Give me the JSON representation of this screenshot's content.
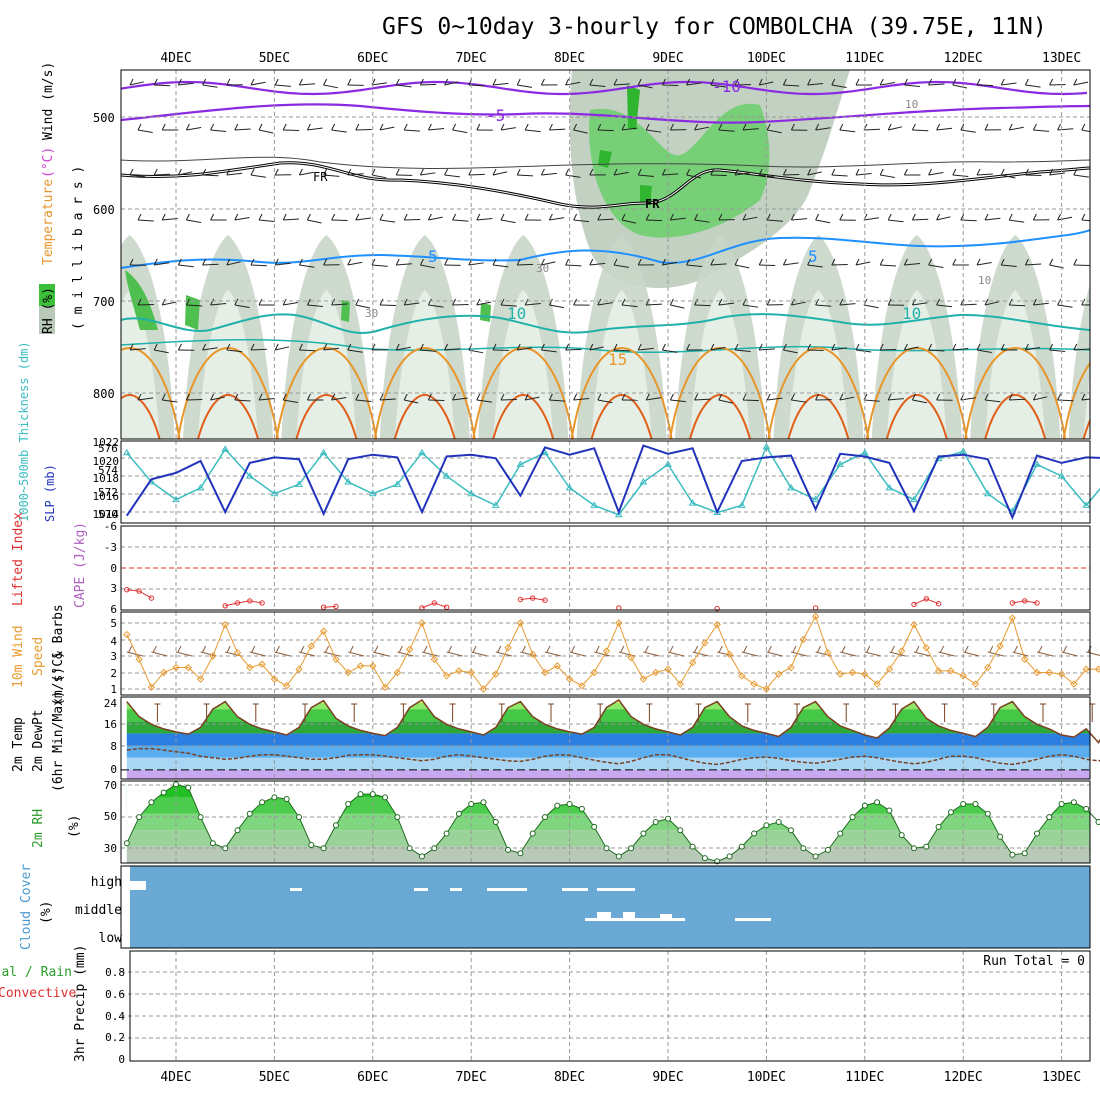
{
  "title": "GFS 0~10day 3-hourly for COMBOLCHA (39.75E, 11N)",
  "date_labels": [
    "4DEC",
    "5DEC",
    "6DEC",
    "7DEC",
    "8DEC",
    "9DEC",
    "10DEC",
    "11DEC",
    "12DEC",
    "13DEC"
  ],
  "panels": {
    "upper_air": {
      "label_rh": "RH (%)",
      "label_temperature": "Temperature",
      "label_temperature_unit": "(°C)",
      "label_wind": "Wind (m/s)",
      "label_pressure": "( m i l l i b a r s )",
      "pressure_ticks": [
        "500",
        "600",
        "700",
        "800"
      ],
      "contour_labels": {
        "m10": "-10",
        "m5": "-5",
        "fr": "FR",
        "p5": "5",
        "p10": "10",
        "p15": "15",
        "rh10": "10",
        "rh30": "30"
      }
    },
    "slp_thickness": {
      "label_thickness": "1000~500mb Thickness (dm)",
      "label_slp": "SLP (mb)",
      "left_ticks": [
        "576",
        "574",
        "572",
        "570"
      ],
      "right_ticks": [
        "1022",
        "1020",
        "1018",
        "1016",
        "1014"
      ]
    },
    "lifted_index": {
      "label_li": "Lifted Index",
      "label_cape": "CAPE (J/kg)",
      "ticks": [
        "-6",
        "-3",
        "0",
        "3",
        "6"
      ]
    },
    "wind10m": {
      "label_1": "10m Wind",
      "label_2": "Speed",
      "label_3": "(m/s) & Barbs",
      "ticks": [
        "5",
        "4",
        "3",
        "2",
        "1"
      ]
    },
    "temp2m": {
      "label_1": "2m Temp",
      "label_2": "2m DewPt",
      "label_3": "(6hr Min/Max) (°C)",
      "ticks": [
        "24",
        "16",
        "8",
        "0"
      ]
    },
    "rh2m": {
      "label": "2m RH",
      "unit": "(%)",
      "ticks": [
        "70",
        "50",
        "30"
      ]
    },
    "cloud": {
      "label": "Cloud Cover",
      "unit": "(%)",
      "levels": [
        "high",
        "middle",
        "low"
      ]
    },
    "precip": {
      "label_total": "Total / Rain",
      "label_conv": "Convective",
      "label_axis": "3hr Precip (mm)",
      "ticks": [
        "0.8",
        "0.6",
        "0.4",
        "0.2",
        "0"
      ],
      "run_total": "Run Total = 0"
    }
  },
  "colors": {
    "purple": "#8a2be2",
    "cyan_blue": "#1e90ff",
    "teal": "#20b2aa",
    "orange": "#e8952a",
    "dark_orange": "#e0601a",
    "rh_green": "#3cc03c",
    "rh_grey": "#b8c9b8",
    "slp_blue": "#2233bb",
    "thickness_cyan": "#3bbcc0",
    "cloud_blue": "#6aa9d4",
    "lifted_red": "#e03030",
    "wind_orange": "#e89a30"
  },
  "chart_data": [
    {
      "type": "line",
      "name": "SLP and 1000-500mb thickness",
      "x": [
        "3DEC12",
        "3DEC18",
        "4DEC00",
        "4DEC06",
        "4DEC12",
        "4DEC18",
        "5DEC00",
        "5DEC06",
        "5DEC12",
        "5DEC18",
        "6DEC00",
        "6DEC06",
        "6DEC12",
        "6DEC18",
        "7DEC00",
        "7DEC06",
        "7DEC12",
        "7DEC18",
        "8DEC00",
        "8DEC06",
        "8DEC12",
        "8DEC18",
        "9DEC00",
        "9DEC06",
        "9DEC12",
        "9DEC18",
        "10DEC00",
        "10DEC06",
        "10DEC12",
        "10DEC18",
        "11DEC00",
        "11DEC06",
        "11DEC12",
        "11DEC18",
        "12DEC00",
        "12DEC06",
        "12DEC12",
        "12DEC18",
        "13DEC00",
        "13DEC06",
        "13DEC12"
      ],
      "series": [
        {
          "name": "SLP (mb)",
          "values": [
            1013.8,
            1017.8,
            1018.5,
            1019.8,
            1014.2,
            1019.6,
            1020.2,
            1020.0,
            1014.0,
            1020.0,
            1020.5,
            1020.2,
            1014.2,
            1020.3,
            1020.5,
            1020.1,
            1016.0,
            1021.3,
            1020.5,
            1021.2,
            1014.2,
            1021.5,
            1020.6,
            1021.2,
            1014.2,
            1019.8,
            1020.2,
            1020.4,
            1014.5,
            1020.6,
            1020.3,
            1019.6,
            1014.3,
            1020.3,
            1020.5,
            1020.0,
            1013.6,
            1020.4,
            1019.6,
            1020.2,
            1020.1
          ]
        },
        {
          "name": "Thickness (dm)",
          "values": [
            575.5,
            573.0,
            571.5,
            572.5,
            575.8,
            573.5,
            572.0,
            572.8,
            575.5,
            573.0,
            572.0,
            572.8,
            575.5,
            573.5,
            572.0,
            571.0,
            574.5,
            575.5,
            572.5,
            571.0,
            570.2,
            573.0,
            574.5,
            571.2,
            570.4,
            571.0,
            576.0,
            572.5,
            571.5,
            574.5,
            575.5,
            572.5,
            571.5,
            575.0,
            575.6,
            572.0,
            570.5,
            574.5,
            573.5,
            571.0,
            573.5
          ]
        }
      ],
      "ylim_left": [
        569.5,
        576.5
      ],
      "ylim_right": [
        1013,
        1022
      ]
    },
    {
      "type": "line",
      "name": "Lifted Index",
      "x": [
        "3DEC12",
        "3DEC15",
        "3DEC18",
        "4DEC12",
        "4DEC15",
        "4DEC18",
        "4DEC21",
        "5DEC12",
        "5DEC15",
        "6DEC12",
        "6DEC15",
        "6DEC18",
        "7DEC12",
        "7DEC15",
        "7DEC18",
        "8DEC12",
        "9DEC12",
        "10DEC12",
        "11DEC12",
        "11DEC15",
        "11DEC18",
        "12DEC12",
        "12DEC15",
        "12DEC18"
      ],
      "values": [
        3.1,
        3.3,
        4.3,
        5.4,
        5.0,
        4.7,
        5.0,
        5.6,
        5.5,
        5.7,
        5.0,
        5.6,
        4.5,
        4.3,
        4.6,
        5.7,
        5.8,
        5.7,
        5.2,
        4.4,
        5.1,
        5.0,
        4.7,
        5.0
      ],
      "ylim": [
        -6,
        6
      ],
      "ylabel": "Lifted Index"
    },
    {
      "type": "line",
      "name": "10m wind speed",
      "x": [
        "3DEC12",
        "3DEC15",
        "3DEC18",
        "3DEC21",
        "4DEC00",
        "4DEC03",
        "4DEC06",
        "4DEC09",
        "4DEC12",
        "4DEC15",
        "4DEC18",
        "4DEC21",
        "5DEC00",
        "5DEC03",
        "5DEC06",
        "5DEC09",
        "5DEC12",
        "5DEC15",
        "5DEC18",
        "5DEC21",
        "6DEC00",
        "6DEC03",
        "6DEC06",
        "6DEC09",
        "6DEC12",
        "6DEC15",
        "6DEC18",
        "6DEC21",
        "7DEC00",
        "7DEC03",
        "7DEC06",
        "7DEC09",
        "7DEC12",
        "7DEC15",
        "7DEC18",
        "7DEC21",
        "8DEC00",
        "8DEC03",
        "8DEC06",
        "8DEC09",
        "8DEC12",
        "8DEC15",
        "8DEC18",
        "8DEC21",
        "9DEC00",
        "9DEC03",
        "9DEC06",
        "9DEC09",
        "9DEC12",
        "9DEC15",
        "9DEC18",
        "9DEC21",
        "10DEC00",
        "10DEC03",
        "10DEC06",
        "10DEC09",
        "10DEC12",
        "10DEC15",
        "10DEC18",
        "10DEC21",
        "11DEC00",
        "11DEC03",
        "11DEC06",
        "11DEC09",
        "11DEC12",
        "11DEC15",
        "11DEC18",
        "11DEC21",
        "12DEC00",
        "12DEC03",
        "12DEC06",
        "12DEC09",
        "12DEC12",
        "12DEC15",
        "12DEC18",
        "12DEC21",
        "13DEC00",
        "13DEC03",
        "13DEC06",
        "13DEC09",
        "13DEC12"
      ],
      "values": [
        4.3,
        2.8,
        1.1,
        2.0,
        2.3,
        2.3,
        1.6,
        3.0,
        4.9,
        3.2,
        2.3,
        2.5,
        1.6,
        1.2,
        2.2,
        3.6,
        4.5,
        2.8,
        2.0,
        2.4,
        2.4,
        1.1,
        2.0,
        3.4,
        5.0,
        2.8,
        1.8,
        2.1,
        2.0,
        1.0,
        1.9,
        3.5,
        5.0,
        3.1,
        2.0,
        2.4,
        1.6,
        1.2,
        2.0,
        3.3,
        5.0,
        2.9,
        1.6,
        2.0,
        2.2,
        1.3,
        2.6,
        3.8,
        4.9,
        3.1,
        1.8,
        1.3,
        1.0,
        1.9,
        2.3,
        4.0,
        5.4,
        3.2,
        1.9,
        2.0,
        1.9,
        1.3,
        2.2,
        3.3,
        4.9,
        3.5,
        2.1,
        2.1,
        1.8,
        1.3,
        2.3,
        3.6,
        5.3,
        2.8,
        2.0,
        2.0,
        1.9,
        1.3,
        2.2,
        2.2,
        2.4
      ],
      "ylim": [
        1,
        5.5
      ],
      "ylabel": "(m/s)"
    },
    {
      "type": "area",
      "name": "2m temperature and dewpoint",
      "x": [
        "3DEC12",
        "3DEC15",
        "3DEC18",
        "3DEC21",
        "4DEC00",
        "4DEC03",
        "4DEC06",
        "4DEC09",
        "4DEC12",
        "4DEC15",
        "4DEC18",
        "4DEC21",
        "5DEC00",
        "5DEC03",
        "5DEC06",
        "5DEC09",
        "5DEC12",
        "5DEC15",
        "5DEC18",
        "5DEC21",
        "6DEC00",
        "6DEC03",
        "6DEC06",
        "6DEC09",
        "6DEC12",
        "6DEC15",
        "6DEC18",
        "6DEC21",
        "7DEC00",
        "7DEC03",
        "7DEC06",
        "7DEC09",
        "7DEC12",
        "7DEC15",
        "7DEC18",
        "7DEC21",
        "8DEC00",
        "8DEC03",
        "8DEC06",
        "8DEC09",
        "8DEC12",
        "8DEC15",
        "8DEC18",
        "8DEC21",
        "9DEC00",
        "9DEC03",
        "9DEC06",
        "9DEC09",
        "9DEC12",
        "9DEC15",
        "9DEC18",
        "9DEC21",
        "10DEC00",
        "10DEC03",
        "10DEC06",
        "10DEC09",
        "10DEC12",
        "10DEC15",
        "10DEC18",
        "10DEC21",
        "11DEC00",
        "11DEC03",
        "11DEC06",
        "11DEC09",
        "11DEC12",
        "11DEC15",
        "11DEC18",
        "11DEC21",
        "12DEC00",
        "12DEC03",
        "12DEC06",
        "12DEC09",
        "12DEC12",
        "12DEC15",
        "12DEC18",
        "12DEC21",
        "13DEC00",
        "13DEC03",
        "13DEC06",
        "13DEC09",
        "13DEC12"
      ],
      "series": [
        {
          "name": "2m Temp",
          "values": [
            22.5,
            17.5,
            15.0,
            13.5,
            12.5,
            11.8,
            14.0,
            20.0,
            22.5,
            17.5,
            15.0,
            13.5,
            12.5,
            11.5,
            14.0,
            20.5,
            22.8,
            17.0,
            14.5,
            13.0,
            12.0,
            11.3,
            14.0,
            20.5,
            23.0,
            17.5,
            15.0,
            13.5,
            12.5,
            11.5,
            14.0,
            20.5,
            22.5,
            17.5,
            15.0,
            13.5,
            12.5,
            11.8,
            14.0,
            20.5,
            23.0,
            17.5,
            15.0,
            13.5,
            12.5,
            11.5,
            14.0,
            20.5,
            22.5,
            17.5,
            14.5,
            13.0,
            12.0,
            11.0,
            14.0,
            20.5,
            22.5,
            17.5,
            14.5,
            13.0,
            11.5,
            10.5,
            13.8,
            20.0,
            22.5,
            17.0,
            14.5,
            13.0,
            12.0,
            11.0,
            14.0,
            20.5,
            22.5,
            17.5,
            15.0,
            13.5,
            11.5,
            10.8,
            13.5,
            9.0,
            16.0
          ]
        },
        {
          "name": "2m DewPt",
          "values": [
            6.5,
            7.0,
            7.0,
            6.5,
            6.0,
            5.5,
            4.5,
            4.0,
            3.5,
            3.8,
            4.5,
            5.0,
            5.0,
            4.5,
            4.0,
            3.5,
            3.5,
            4.0,
            4.8,
            5.0,
            5.0,
            4.5,
            4.0,
            3.5,
            3.0,
            3.5,
            4.5,
            5.0,
            4.5,
            4.0,
            3.5,
            3.0,
            2.8,
            3.5,
            4.5,
            5.0,
            4.8,
            4.0,
            3.2,
            2.5,
            2.0,
            2.8,
            4.0,
            5.0,
            5.0,
            4.0,
            3.0,
            2.2,
            1.8,
            2.5,
            3.5,
            4.0,
            4.2,
            3.8,
            3.0,
            2.5,
            2.2,
            2.8,
            3.5,
            4.2,
            4.5,
            4.0,
            3.2,
            2.5,
            2.0,
            2.5,
            3.5,
            4.5,
            4.5,
            4.0,
            3.0,
            2.2,
            1.8,
            2.5,
            3.5,
            4.5,
            5.0,
            4.5,
            3.5,
            3.0,
            3.5
          ]
        }
      ],
      "ylim": [
        -3,
        24
      ],
      "ylabel": "(°C)"
    },
    {
      "type": "area",
      "name": "2m relative humidity",
      "x": [
        "3DEC12",
        "3DEC15",
        "3DEC18",
        "3DEC21",
        "4DEC00",
        "4DEC03",
        "4DEC06",
        "4DEC09",
        "4DEC12",
        "4DEC15",
        "4DEC18",
        "4DEC21",
        "5DEC00",
        "5DEC03",
        "5DEC06",
        "5DEC09",
        "5DEC12",
        "5DEC15",
        "5DEC18",
        "5DEC21",
        "6DEC00",
        "6DEC03",
        "6DEC06",
        "6DEC09",
        "6DEC12",
        "6DEC15",
        "6DEC18",
        "6DEC21",
        "7DEC00",
        "7DEC03",
        "7DEC06",
        "7DEC09",
        "7DEC12",
        "7DEC15",
        "7DEC18",
        "7DEC21",
        "8DEC00",
        "8DEC03",
        "8DEC06",
        "8DEC09",
        "8DEC12",
        "8DEC15",
        "8DEC18",
        "8DEC21",
        "9DEC00",
        "9DEC03",
        "9DEC06",
        "9DEC09",
        "9DEC12",
        "9DEC15",
        "9DEC18",
        "9DEC21",
        "10DEC00",
        "10DEC03",
        "10DEC06",
        "10DEC09",
        "10DEC12",
        "10DEC15",
        "10DEC18",
        "10DEC21",
        "11DEC00",
        "11DEC03",
        "11DEC06",
        "11DEC09",
        "11DEC12",
        "11DEC15",
        "11DEC18",
        "11DEC21",
        "12DEC00",
        "12DEC03",
        "12DEC06",
        "12DEC09",
        "12DEC12",
        "12DEC15",
        "12DEC18",
        "12DEC21",
        "13DEC00",
        "13DEC03",
        "13DEC06",
        "13DEC09",
        "13DEC12"
      ],
      "values": [
        32,
        48,
        57,
        63,
        68,
        66,
        48,
        32,
        29,
        40,
        50,
        57,
        60,
        59,
        48,
        31,
        29,
        43,
        56,
        62,
        62,
        60,
        48,
        29,
        24,
        29,
        38,
        50,
        56,
        57,
        45,
        28,
        26,
        38,
        48,
        55,
        56,
        53,
        42,
        29,
        24,
        29,
        38,
        45,
        47,
        40,
        30,
        23,
        21,
        24,
        30,
        38,
        43,
        45,
        40,
        29,
        24,
        28,
        38,
        48,
        55,
        57,
        52,
        37,
        29,
        30,
        42,
        51,
        56,
        56,
        50,
        36,
        25,
        26,
        38,
        48,
        56,
        57,
        53,
        45,
        42
      ],
      "ylim": [
        20,
        70
      ],
      "ylabel": "(%)"
    },
    {
      "type": "bar",
      "name": "3hr precipitation",
      "categories": [
        "4DEC",
        "5DEC",
        "6DEC",
        "7DEC",
        "8DEC",
        "9DEC",
        "10DEC",
        "11DEC",
        "12DEC",
        "13DEC"
      ],
      "values": [
        0,
        0,
        0,
        0,
        0,
        0,
        0,
        0,
        0,
        0
      ],
      "ylim": [
        0,
        1.0
      ],
      "ylabel": "3hr Precip (mm)"
    }
  ]
}
